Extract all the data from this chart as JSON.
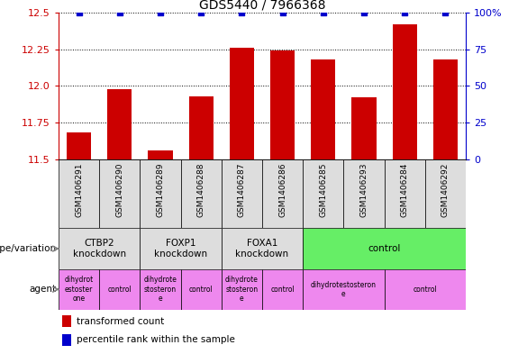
{
  "title": "GDS5440 / 7966368",
  "samples": [
    "GSM1406291",
    "GSM1406290",
    "GSM1406289",
    "GSM1406288",
    "GSM1406287",
    "GSM1406286",
    "GSM1406285",
    "GSM1406293",
    "GSM1406284",
    "GSM1406292"
  ],
  "transformed_count": [
    11.68,
    11.98,
    11.56,
    11.93,
    12.26,
    12.24,
    12.18,
    11.92,
    12.42,
    12.18
  ],
  "percentile_rank": [
    100,
    100,
    100,
    100,
    100,
    100,
    100,
    100,
    100,
    100
  ],
  "ylim_left": [
    11.5,
    12.5
  ],
  "ylim_right": [
    0,
    100
  ],
  "yticks_left": [
    11.5,
    11.75,
    12.0,
    12.25,
    12.5
  ],
  "yticks_right": [
    0,
    25,
    50,
    75,
    100
  ],
  "bar_color": "#cc0000",
  "dot_color": "#0000cc",
  "genotype_groups": [
    {
      "label": "CTBP2\nknockdown",
      "start": 0,
      "end": 2,
      "color": "#dddddd"
    },
    {
      "label": "FOXP1\nknockdown",
      "start": 2,
      "end": 4,
      "color": "#dddddd"
    },
    {
      "label": "FOXA1\nknockdown",
      "start": 4,
      "end": 6,
      "color": "#dddddd"
    },
    {
      "label": "control",
      "start": 6,
      "end": 10,
      "color": "#66ee66"
    }
  ],
  "agent_groups": [
    {
      "label": "dihydrot\nestoster\none",
      "start": 0,
      "end": 1,
      "color": "#ee88ee"
    },
    {
      "label": "control",
      "start": 1,
      "end": 2,
      "color": "#ee88ee"
    },
    {
      "label": "dihydrote\nstosteron\ne",
      "start": 2,
      "end": 3,
      "color": "#ee88ee"
    },
    {
      "label": "control",
      "start": 3,
      "end": 4,
      "color": "#ee88ee"
    },
    {
      "label": "dihydrote\nstosteron\ne",
      "start": 4,
      "end": 5,
      "color": "#ee88ee"
    },
    {
      "label": "control",
      "start": 5,
      "end": 6,
      "color": "#ee88ee"
    },
    {
      "label": "dihydrotestosteron\ne",
      "start": 6,
      "end": 8,
      "color": "#ee88ee"
    },
    {
      "label": "control",
      "start": 8,
      "end": 10,
      "color": "#ee88ee"
    }
  ],
  "legend_bar_label": "transformed count",
  "legend_dot_label": "percentile rank within the sample",
  "genotype_label": "genotype/variation",
  "agent_label": "agent",
  "left_axis_color": "#cc0000",
  "right_axis_color": "#0000cc",
  "bar_width": 0.6,
  "dot_size": 16
}
